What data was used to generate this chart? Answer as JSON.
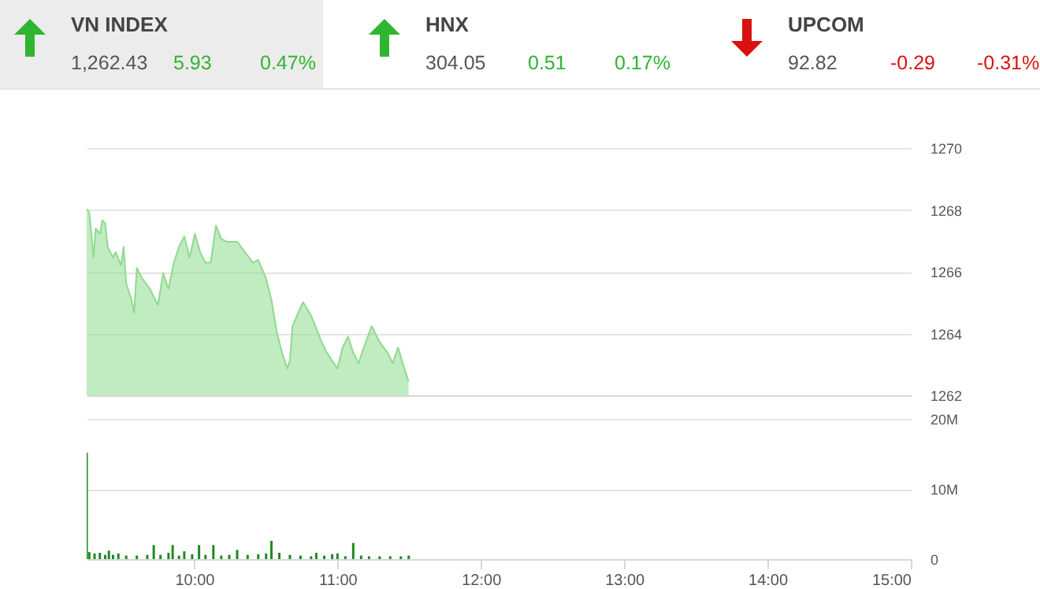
{
  "chart_data": [
    {
      "type": "other",
      "categories": [
        "VN INDEX",
        "HNX",
        "UPCOM"
      ],
      "annotations": [
        "1,262.43",
        "5.93",
        "0.47%",
        "304.05",
        "0.51",
        "0.17%",
        "92.82",
        "-0.29",
        "-0.31%"
      ],
      "colors": [
        "#2fb52f",
        "#2fb52f",
        "#d9120f"
      ]
    },
    {
      "type": "area",
      "color": "#8edb8e",
      "xlim": [
        9.25,
        15
      ],
      "ylim": [
        1262,
        1270
      ],
      "yticks": [
        1262,
        1264,
        1266,
        1268,
        1270
      ],
      "grid": "y",
      "tick_labels": "y",
      "x": [
        9.25,
        9.269,
        9.298,
        9.313,
        9.342,
        9.36,
        9.379,
        9.397,
        9.434,
        9.452,
        9.49,
        9.508,
        9.526,
        9.563,
        9.581,
        9.6,
        9.637,
        9.692,
        9.729,
        9.747,
        9.784,
        9.821,
        9.858,
        9.894,
        9.931,
        9.968,
        10.005,
        10.042,
        10.079,
        10.115,
        10.152,
        10.189,
        10.226,
        10.3,
        10.355,
        10.41,
        10.447,
        10.502,
        10.539,
        10.576,
        10.613,
        10.65,
        10.668,
        10.686,
        10.742,
        10.76,
        10.816,
        10.889,
        10.926,
        10.999,
        11.036,
        11.073,
        11.11,
        11.147,
        11.184,
        11.239,
        11.294,
        11.349,
        11.386,
        11.423,
        11.46,
        11.496
      ],
      "values": [
        1268.03,
        1267.91,
        1266.46,
        1267.4,
        1267.23,
        1267.66,
        1267.57,
        1266.8,
        1266.46,
        1266.63,
        1266.21,
        1266.8,
        1265.61,
        1265.09,
        1264.67,
        1266.12,
        1265.78,
        1265.44,
        1265.09,
        1264.92,
        1265.95,
        1265.44,
        1266.29,
        1266.8,
        1267.14,
        1266.46,
        1267.23,
        1266.63,
        1266.29,
        1266.29,
        1267.49,
        1267.06,
        1266.97,
        1266.97,
        1266.63,
        1266.29,
        1266.38,
        1265.78,
        1265.09,
        1264.07,
        1263.38,
        1262.87,
        1263.13,
        1264.24,
        1264.84,
        1265.01,
        1264.58,
        1263.73,
        1263.38,
        1262.87,
        1263.55,
        1263.9,
        1263.38,
        1263.04,
        1263.55,
        1264.24,
        1263.73,
        1263.38,
        1263.04,
        1263.55,
        1262.96,
        1262.45
      ]
    },
    {
      "type": "bar",
      "color": "#1f8a1f",
      "xlim": [
        9.25,
        15
      ],
      "xticks": [
        {
          "value": 10,
          "label": "10:00"
        },
        {
          "value": 11,
          "label": "11:00"
        },
        {
          "value": 12,
          "label": "12:00"
        },
        {
          "value": 13,
          "label": "13:00"
        },
        {
          "value": 14,
          "label": "14:00"
        },
        {
          "value": 15,
          "label": "15:00"
        }
      ],
      "ylim": [
        0,
        20
      ],
      "yticks": [
        {
          "value": 0,
          "label": "0"
        },
        {
          "value": 10,
          "label": "10M"
        },
        {
          "value": 20,
          "label": "20M"
        }
      ],
      "grid": "y",
      "x": [
        9.25,
        9.268,
        9.305,
        9.342,
        9.379,
        9.405,
        9.434,
        9.471,
        9.526,
        9.6,
        9.673,
        9.718,
        9.765,
        9.821,
        9.85,
        9.894,
        9.931,
        9.986,
        10.034,
        10.079,
        10.134,
        10.189,
        10.245,
        10.3,
        10.373,
        10.447,
        10.502,
        10.539,
        10.594,
        10.668,
        10.742,
        10.816,
        10.852,
        10.908,
        10.963,
        11.0,
        11.055,
        11.11,
        11.165,
        11.22,
        11.294,
        11.368,
        11.442,
        11.497
      ],
      "values": [
        15.2,
        1.0,
        0.8,
        0.9,
        0.6,
        1.2,
        0.6,
        0.8,
        0.5,
        0.5,
        0.6,
        2.0,
        0.6,
        0.9,
        2.0,
        0.5,
        1.1,
        0.7,
        2.0,
        0.6,
        2.0,
        0.5,
        0.6,
        1.3,
        0.6,
        0.7,
        0.8,
        2.6,
        0.9,
        0.6,
        0.5,
        0.4,
        0.9,
        0.5,
        0.7,
        0.8,
        0.4,
        2.3,
        0.5,
        0.4,
        0.4,
        0.4,
        0.4,
        0.5
      ]
    }
  ]
}
